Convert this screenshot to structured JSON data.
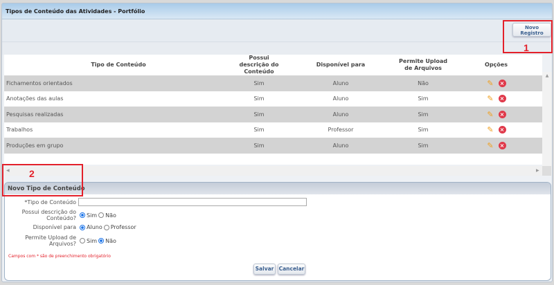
{
  "window": {
    "title": "Tipos de Conteúdo das Atividades - Portfólio"
  },
  "toolbar": {
    "new_record": "Novo Registro"
  },
  "annotations": {
    "one": "1",
    "two": "2"
  },
  "table": {
    "headers": [
      "Tipo de Conteúdo",
      "Possui descrição do Conteúdo",
      "Disponível para",
      "Permite Upload de Arquivos",
      "Opções"
    ],
    "rows": [
      [
        "Fichamentos orientados",
        "Sim",
        "Aluno",
        "Não"
      ],
      [
        "Anotações das aulas",
        "Sim",
        "Aluno",
        "Sim"
      ],
      [
        "Pesquisas realizadas",
        "Sim",
        "Aluno",
        "Sim"
      ],
      [
        "Trabalhos",
        "Sim",
        "Professor",
        "Sim"
      ],
      [
        "Produções em grupo",
        "Sim",
        "Aluno",
        "Sim"
      ]
    ],
    "row_icons": [
      "edit-pencil-icon",
      "delete-x-icon"
    ]
  },
  "form": {
    "title": "Novo Tipo de Conteúdo",
    "tipo_label": "*Tipo de Conteúdo",
    "tipo_value": "",
    "possui_label": "Possui descrição do Conteúdo?",
    "possui_options": [
      "Sim",
      "Não"
    ],
    "possui_selected": "Sim",
    "disp_label": "Disponível para",
    "disp_options": [
      "Aluno",
      "Professor"
    ],
    "disp_selected": "Aluno",
    "upload_label": "Permite Upload de Arquivos?",
    "upload_options": [
      "Sim",
      "Não"
    ],
    "upload_selected": "Não",
    "required_note": "Campos com * são de preenchimento obrigatório",
    "save": "Salvar",
    "cancel": "Cancelar"
  },
  "colors": {
    "annotation": "#e3202a",
    "accent": "#3a5f8f",
    "delete": "#e0394a"
  }
}
